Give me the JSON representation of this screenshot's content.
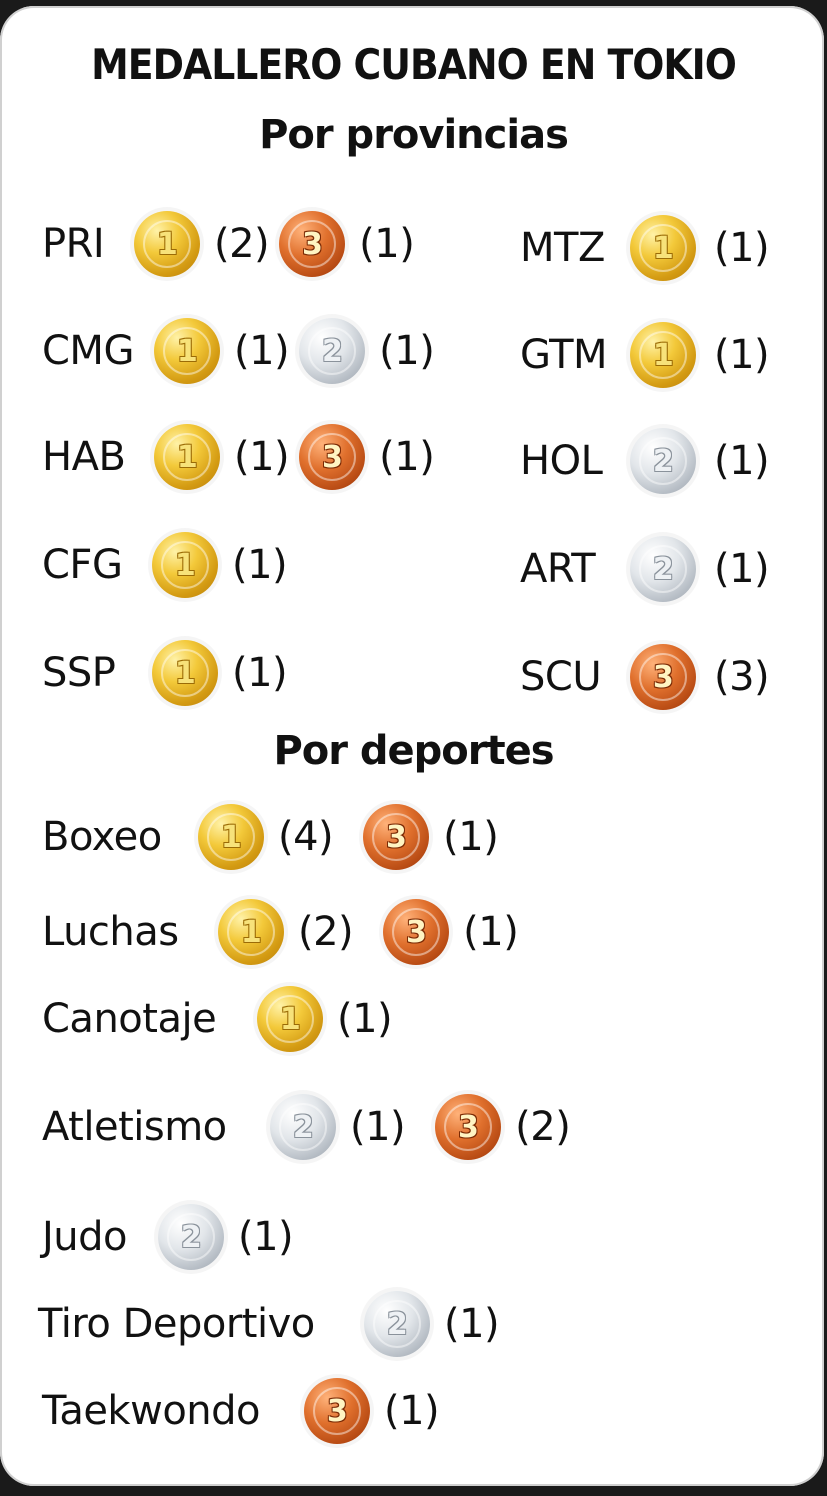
{
  "title": "MEDALLERO CUBANO EN TOKIO",
  "section_provinces": "Por provincias",
  "section_sports": "Por deportes",
  "medal_digits": {
    "gold": "1",
    "silver": "2",
    "bronze": "3"
  },
  "colors": {
    "gold": "#f3c93a",
    "silver": "#c8ced4",
    "bronze": "#e0702d",
    "text": "#111111",
    "card": "#ffffff"
  },
  "provinces_left": [
    {
      "name": "PRI",
      "m1": "gold",
      "c1": "(2)",
      "m2": "bronze",
      "c2": "(1)"
    },
    {
      "name": "CMG",
      "m1": "gold",
      "c1": "(1)",
      "m2": "silver",
      "c2": "(1)"
    },
    {
      "name": "HAB",
      "m1": "gold",
      "c1": "(1)",
      "m2": "bronze",
      "c2": "(1)"
    },
    {
      "name": "CFG",
      "m1": "gold",
      "c1": "(1)"
    },
    {
      "name": "SSP",
      "m1": "gold",
      "c1": "(1)"
    }
  ],
  "provinces_right": [
    {
      "name": "MTZ",
      "m1": "gold",
      "c1": "(1)"
    },
    {
      "name": "GTM",
      "m1": "gold",
      "c1": "(1)"
    },
    {
      "name": "HOL",
      "m1": "silver",
      "c1": "(1)"
    },
    {
      "name": "ART",
      "m1": "silver",
      "c1": "(1)"
    },
    {
      "name": "SCU",
      "m1": "bronze",
      "c1": "(3)"
    }
  ],
  "sports": [
    {
      "name": "Boxeo",
      "m1": "gold",
      "c1": "(4)",
      "m2": "bronze",
      "c2": "(1)"
    },
    {
      "name": "Luchas",
      "m1": "gold",
      "c1": "(2)",
      "m2": "bronze",
      "c2": "(1)"
    },
    {
      "name": "Canotaje",
      "m1": "gold",
      "c1": "(1)"
    },
    {
      "name": "Atletismo",
      "m1": "silver",
      "c1": "(1)",
      "m2": "bronze",
      "c2": "(2)"
    },
    {
      "name": "Judo",
      "m1": "silver",
      "c1": "(1)"
    },
    {
      "name": "Tiro Deportivo",
      "m1": "silver",
      "c1": "(1)"
    },
    {
      "name": "Taekwondo",
      "m1": "bronze",
      "c1": "(1)"
    }
  ]
}
